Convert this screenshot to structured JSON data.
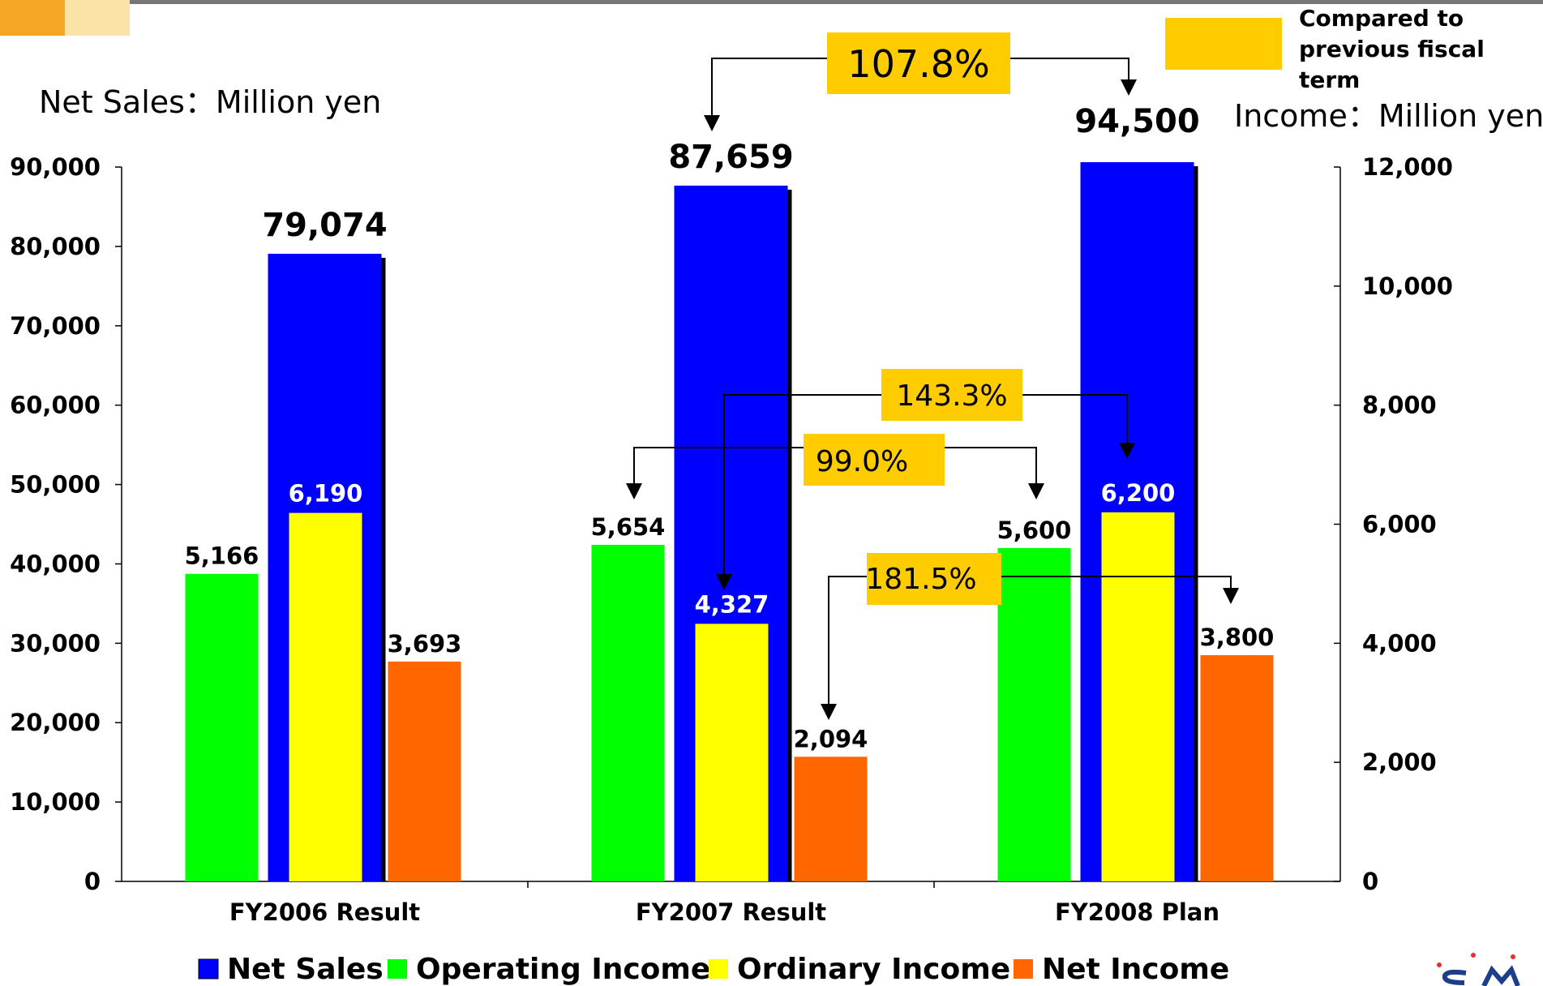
{
  "chart_data": {
    "type": "bar",
    "categories": [
      "FY2006 Result",
      "FY2007 Result",
      "FY2008 Plan"
    ],
    "series": [
      {
        "name": "Net Sales",
        "values": [
          79074,
          87659,
          94500
        ],
        "labels": [
          "79,074",
          "87,659",
          "94,500"
        ],
        "axis": "left",
        "color": "#0000FF"
      },
      {
        "name": "Operating Income",
        "values": [
          5166,
          5654,
          5600
        ],
        "labels": [
          "5,166",
          "5,654",
          "5,600"
        ],
        "axis": "right",
        "color": "#00FF00"
      },
      {
        "name": "Ordinary Income",
        "values": [
          6190,
          4327,
          6200
        ],
        "labels": [
          "6,190",
          "4,327",
          "6,200"
        ],
        "axis": "right",
        "color": "#FFFF00"
      },
      {
        "name": "Net Income",
        "values": [
          3693,
          2094,
          3800
        ],
        "labels": [
          "3,693",
          "2,094",
          "3,800"
        ],
        "axis": "right",
        "color": "#FF6600"
      }
    ],
    "left_axis": {
      "label": "Net Sales：Million yen",
      "ylim": [
        0,
        90000
      ],
      "ticks": [
        "0",
        "10,000",
        "20,000",
        "30,000",
        "40,000",
        "50,000",
        "60,000",
        "70,000",
        "80,000",
        "90,000"
      ]
    },
    "right_axis": {
      "label": "Income：Million yen",
      "ylim": [
        0,
        12000
      ],
      "ticks": [
        "0",
        "2,000",
        "4,000",
        "6,000",
        "8,000",
        "10,000",
        "12,000"
      ]
    },
    "annotations": [
      {
        "text": "107.8%",
        "series": "Net Sales",
        "from": "FY2007 Result",
        "to": "FY2008 Plan"
      },
      {
        "text": "143.3%",
        "series": "Ordinary Income",
        "from": "FY2007 Result",
        "to": "FY2008 Plan"
      },
      {
        "text": "99.0%",
        "series": "Operating Income",
        "from": "FY2007 Result",
        "to": "FY2008 Plan"
      },
      {
        "text": "181.5%",
        "series": "Net Income",
        "from": "FY2007 Result",
        "to": "FY2008 Plan"
      }
    ],
    "note": "Compared to previous fiscal term",
    "legend": "bottom",
    "grid": false
  },
  "colors": {
    "accent_box": "#FFCC00",
    "header_bar": "#666666",
    "logo_orange": "#F5A623"
  }
}
